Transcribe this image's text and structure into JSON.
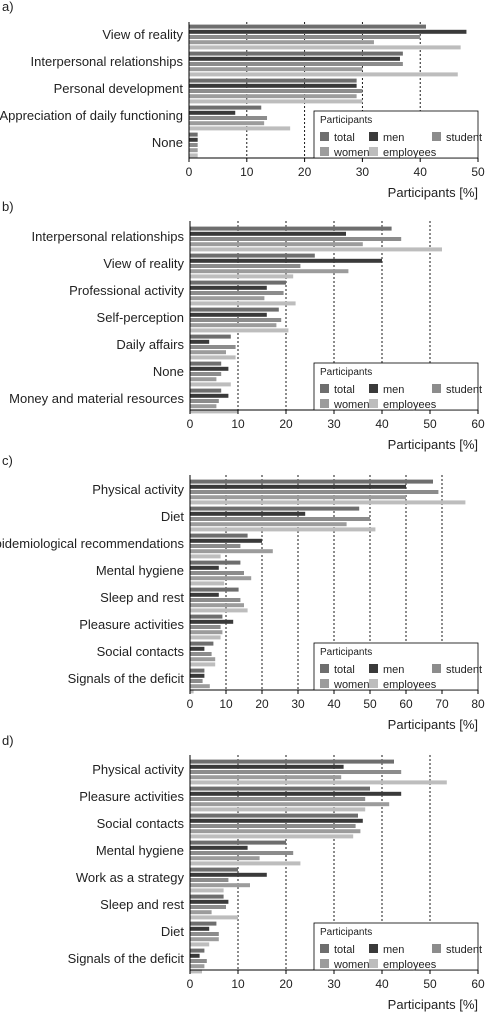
{
  "chart_data": [
    {
      "panel_label": "a)",
      "type": "bar",
      "orientation": "horizontal",
      "categories": [
        "View of reality",
        "Interpersonal relationships",
        "Personal development",
        "Appreciation of daily functioning",
        "None"
      ],
      "series": [
        {
          "name": "total",
          "values": [
            41,
            37,
            29,
            12.5,
            1.5
          ]
        },
        {
          "name": "men",
          "values": [
            48,
            36.5,
            29,
            8,
            1.5
          ]
        },
        {
          "name": "student",
          "values": [
            40,
            37,
            30,
            13.5,
            1.5
          ]
        },
        {
          "name": "women",
          "values": [
            32,
            30,
            29,
            13,
            1.5
          ]
        },
        {
          "name": "employees",
          "values": [
            47,
            46.5,
            30,
            17.5,
            1.5
          ]
        }
      ],
      "xlabel": "Participants [%]",
      "xlim": [
        0,
        50
      ],
      "xticks": [
        0,
        10,
        20,
        30,
        40,
        50
      ],
      "legend": {
        "title": "Participants",
        "position": "bottom-right"
      }
    },
    {
      "panel_label": "b)",
      "type": "bar",
      "orientation": "horizontal",
      "categories": [
        "Interpersonal relationships",
        "View of reality",
        "Professional activity",
        "Self-perception",
        "Daily affairs",
        "None",
        "Money and material resources"
      ],
      "series": [
        {
          "name": "total",
          "values": [
            42,
            26,
            20,
            18.5,
            8.5,
            6.5,
            6.5
          ]
        },
        {
          "name": "men",
          "values": [
            32.5,
            40,
            16,
            16,
            4,
            8,
            8
          ]
        },
        {
          "name": "student",
          "values": [
            44,
            23,
            19.5,
            19,
            9.5,
            6.5,
            6
          ]
        },
        {
          "name": "women",
          "values": [
            36,
            33,
            15.5,
            18,
            7.5,
            5.5,
            5.5
          ]
        },
        {
          "name": "employees",
          "values": [
            52.5,
            21.5,
            22,
            20.5,
            9.5,
            8.5,
            10
          ]
        }
      ],
      "xlabel": "Participants [%]",
      "xlim": [
        0,
        60
      ],
      "xticks": [
        0,
        10,
        20,
        30,
        40,
        50,
        60
      ],
      "legend": {
        "title": "Participants",
        "position": "bottom-right"
      }
    },
    {
      "panel_label": "c)",
      "type": "bar",
      "orientation": "horizontal",
      "categories": [
        "Physical activity",
        "Diet",
        "Epidemiological recommendations",
        "Mental hygiene",
        "Sleep and rest",
        "Pleasure activities",
        "Social contacts",
        "Signals of the deficit"
      ],
      "series": [
        {
          "name": "total",
          "values": [
            67.5,
            47,
            16,
            14,
            13.5,
            9,
            6.5,
            4
          ]
        },
        {
          "name": "men",
          "values": [
            60,
            32,
            20,
            8,
            8,
            12,
            4,
            4
          ]
        },
        {
          "name": "student",
          "values": [
            69,
            50,
            14,
            15,
            14,
            8.5,
            6,
            3.5
          ]
        },
        {
          "name": "women",
          "values": [
            60,
            43.5,
            23,
            17,
            15,
            9,
            7,
            5.5
          ]
        },
        {
          "name": "employees",
          "values": [
            76.5,
            51.5,
            8.5,
            9.5,
            16,
            8.5,
            7,
            1
          ]
        }
      ],
      "xlabel": "Participants [%]",
      "xlim": [
        0,
        80
      ],
      "xticks": [
        0,
        10,
        20,
        30,
        40,
        50,
        60,
        70,
        80
      ],
      "legend": {
        "title": "Participants",
        "position": "bottom-right"
      }
    },
    {
      "panel_label": "d)",
      "type": "bar",
      "orientation": "horizontal",
      "categories": [
        "Physical activity",
        "Pleasure activities",
        "Social contacts",
        "Mental hygiene",
        "Work as a strategy",
        "Sleep and rest",
        "Diet",
        "Signals of the deficit"
      ],
      "series": [
        {
          "name": "total",
          "values": [
            42.5,
            37.5,
            35,
            20,
            10,
            7,
            5.5,
            3
          ]
        },
        {
          "name": "men",
          "values": [
            32,
            44,
            36,
            12,
            16,
            8,
            4,
            2
          ]
        },
        {
          "name": "student",
          "values": [
            44,
            36.5,
            34.5,
            21.5,
            8,
            7.5,
            6,
            3.5
          ]
        },
        {
          "name": "women",
          "values": [
            31.5,
            41.5,
            35.5,
            14.5,
            12.5,
            4.5,
            6,
            3
          ]
        },
        {
          "name": "employees",
          "values": [
            53.5,
            36.5,
            34,
            23,
            7,
            10,
            4,
            2.5
          ]
        }
      ],
      "xlabel": "Participants [%]",
      "xlim": [
        0,
        60
      ],
      "xticks": [
        0,
        10,
        20,
        30,
        40,
        50,
        60
      ],
      "legend": {
        "title": "Participants",
        "position": "bottom-right"
      }
    }
  ],
  "series_colors": {
    "total": "#6e6e6e",
    "men": "#3a3a3a",
    "student": "#8c8c8c",
    "women": "#9c9c9c",
    "employees": "#bdbdbd"
  },
  "grid": "vertical dashed lines at major ticks"
}
